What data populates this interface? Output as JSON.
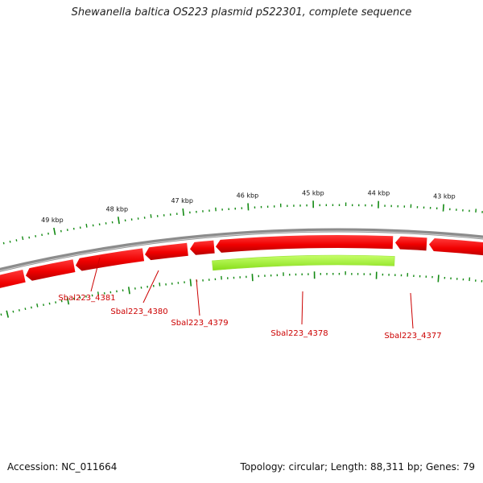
{
  "title": "Shewanella baltica OS223 plasmid pS22301, complete sequence",
  "footer": {
    "accession": "Accession: NC_011664",
    "summary": "Topology: circular; Length: 88,311 bp; Genes: 79"
  },
  "colors": {
    "background": "#ffffff",
    "backbone": "#8c8c8c",
    "gene_forward": "#ff0000",
    "gene_highlight": "#a6ff33",
    "ticks": "#138a13",
    "gene_label": "#cc0000"
  },
  "scale_labels": [
    "49 kbp",
    "48 kbp",
    "47 kbp",
    "46 kbp",
    "45 kbp",
    "44 kbp",
    "43 kbp"
  ],
  "genes": [
    {
      "id": "Sbal223_4381",
      "highlight": false
    },
    {
      "id": "Sbal223_4380",
      "highlight": false
    },
    {
      "id": "Sbal223_4379",
      "highlight": false
    },
    {
      "id": "Sbal223_4378",
      "highlight": true
    },
    {
      "id": "Sbal223_4377",
      "highlight": false
    }
  ]
}
